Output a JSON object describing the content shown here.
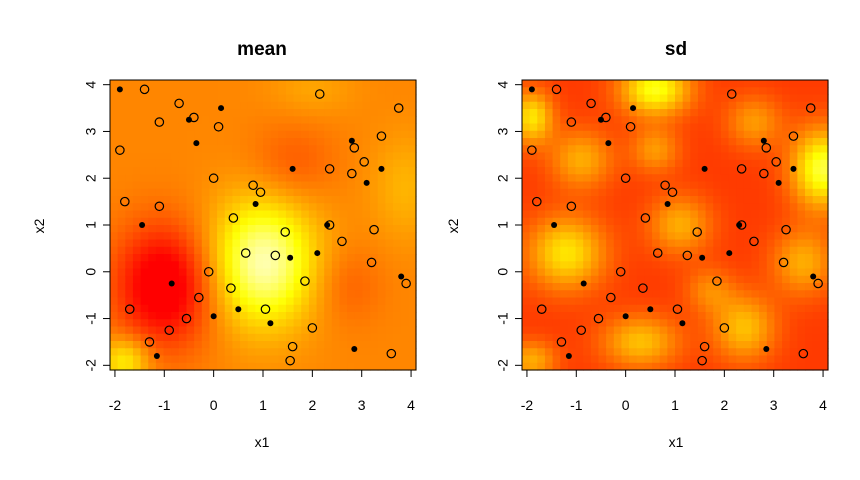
{
  "chart_data": [
    {
      "type": "heatmap",
      "title": "mean",
      "xlabel": "x1",
      "ylabel": "x2",
      "xlim": [
        -2.1,
        4.1
      ],
      "ylim": [
        -2.1,
        4.1
      ],
      "xticks": [
        "-2",
        "-1",
        "0",
        "1",
        "2",
        "3",
        "4"
      ],
      "yticks": [
        "-2",
        "-1",
        "0",
        "1",
        "2",
        "3",
        "4"
      ],
      "colormap": [
        "#ff0000",
        "#ff8000",
        "#ffff00",
        "#ffffff"
      ],
      "field_bumps": [
        {
          "x": 1.0,
          "y": 0.2,
          "sx": 0.75,
          "sy": 0.95,
          "a": 0.55
        },
        {
          "x": -1.0,
          "y": -0.3,
          "sx": 0.7,
          "sy": 0.9,
          "a": -0.45
        },
        {
          "x": -1.8,
          "y": -1.9,
          "sx": 0.35,
          "sy": 0.35,
          "a": 0.3
        },
        {
          "x": 1.6,
          "y": 2.3,
          "sx": 0.6,
          "sy": 0.6,
          "a": -0.12
        },
        {
          "x": 2.7,
          "y": -0.3,
          "sx": 0.5,
          "sy": 0.6,
          "a": -0.1
        },
        {
          "x": 3.9,
          "y": 1.8,
          "sx": 0.5,
          "sy": 0.8,
          "a": 0.12
        },
        {
          "x": 2.0,
          "y": 3.9,
          "sx": 0.6,
          "sy": 0.4,
          "a": 0.08
        }
      ],
      "field_base": 0.35,
      "design_points_open": [
        [
          -1.4,
          3.9
        ],
        [
          -1.9,
          2.6
        ],
        [
          -1.8,
          1.5
        ],
        [
          -1.1,
          1.4
        ],
        [
          -1.1,
          3.2
        ],
        [
          -0.7,
          3.6
        ],
        [
          -0.4,
          3.3
        ],
        [
          0.1,
          3.1
        ],
        [
          0.0,
          2.0
        ],
        [
          0.8,
          1.85
        ],
        [
          0.95,
          1.7
        ],
        [
          0.4,
          1.15
        ],
        [
          0.65,
          0.4
        ],
        [
          -0.1,
          0.0
        ],
        [
          0.35,
          -0.35
        ],
        [
          -0.3,
          -0.55
        ],
        [
          -0.55,
          -1.0
        ],
        [
          -0.9,
          -1.25
        ],
        [
          -1.7,
          -0.8
        ],
        [
          -1.3,
          -1.5
        ],
        [
          1.25,
          0.35
        ],
        [
          1.45,
          0.85
        ],
        [
          1.05,
          -0.8
        ],
        [
          1.85,
          -0.2
        ],
        [
          1.6,
          -1.6
        ],
        [
          1.55,
          -1.9
        ],
        [
          2.0,
          -1.2
        ],
        [
          2.35,
          1.0
        ],
        [
          2.6,
          0.65
        ],
        [
          2.35,
          2.2
        ],
        [
          2.15,
          3.8
        ],
        [
          2.8,
          2.1
        ],
        [
          2.85,
          2.65
        ],
        [
          3.05,
          2.35
        ],
        [
          3.4,
          2.9
        ],
        [
          3.25,
          0.9
        ],
        [
          3.2,
          0.2
        ],
        [
          3.75,
          3.5
        ],
        [
          3.9,
          -0.25
        ],
        [
          3.6,
          -1.75
        ]
      ],
      "design_points_filled": [
        [
          -1.9,
          3.9
        ],
        [
          -0.5,
          3.25
        ],
        [
          0.15,
          3.5
        ],
        [
          -0.35,
          2.75
        ],
        [
          1.6,
          2.2
        ],
        [
          2.8,
          2.8
        ],
        [
          3.4,
          2.2
        ],
        [
          3.1,
          1.9
        ],
        [
          0.85,
          1.45
        ],
        [
          -1.45,
          1.0
        ],
        [
          2.3,
          1.0
        ],
        [
          2.1,
          0.4
        ],
        [
          1.55,
          0.3
        ],
        [
          3.8,
          -0.1
        ],
        [
          -0.85,
          -0.25
        ],
        [
          0.0,
          -0.95
        ],
        [
          0.5,
          -0.8
        ],
        [
          1.15,
          -1.1
        ],
        [
          2.85,
          -1.65
        ],
        [
          -1.15,
          -1.8
        ]
      ]
    },
    {
      "type": "heatmap",
      "title": "sd",
      "xlabel": "x1",
      "ylabel": "x2",
      "xlim": [
        -2.1,
        4.1
      ],
      "ylim": [
        -2.1,
        4.1
      ],
      "xticks": [
        "-2",
        "-1",
        "0",
        "1",
        "2",
        "3",
        "4"
      ],
      "yticks": [
        "-2",
        "-1",
        "0",
        "1",
        "2",
        "3",
        "4"
      ],
      "colormap": [
        "#ff0000",
        "#ff8000",
        "#ffff00",
        "#ffffff"
      ],
      "field_bumps": [
        {
          "x": 0.6,
          "y": 3.9,
          "sx": 0.5,
          "sy": 0.4,
          "a": 0.55
        },
        {
          "x": 4.0,
          "y": 2.2,
          "sx": 0.45,
          "sy": 0.6,
          "a": 0.6
        },
        {
          "x": -1.2,
          "y": 0.4,
          "sx": 0.55,
          "sy": 0.55,
          "a": 0.45
        },
        {
          "x": -1.9,
          "y": 3.3,
          "sx": 0.3,
          "sy": 0.4,
          "a": 0.45
        },
        {
          "x": 0.3,
          "y": -1.5,
          "sx": 0.55,
          "sy": 0.4,
          "a": 0.35
        },
        {
          "x": 2.4,
          "y": -1.2,
          "sx": 0.45,
          "sy": 0.5,
          "a": 0.35
        },
        {
          "x": 1.1,
          "y": 1.0,
          "sx": 0.45,
          "sy": 0.45,
          "a": 0.3
        },
        {
          "x": -0.9,
          "y": 2.4,
          "sx": 0.45,
          "sy": 0.45,
          "a": 0.3
        },
        {
          "x": 2.6,
          "y": 3.2,
          "sx": 0.4,
          "sy": 0.4,
          "a": 0.25
        },
        {
          "x": 3.6,
          "y": 0.2,
          "sx": 0.45,
          "sy": 0.5,
          "a": 0.3
        },
        {
          "x": 0.6,
          "y": 2.6,
          "sx": 0.35,
          "sy": 0.35,
          "a": 0.25
        },
        {
          "x": 1.7,
          "y": -0.4,
          "sx": 0.35,
          "sy": 0.35,
          "a": 0.2
        },
        {
          "x": -1.9,
          "y": -1.9,
          "sx": 0.35,
          "sy": 0.3,
          "a": 0.3
        }
      ],
      "field_base": 0.15,
      "design_points_open": [
        [
          -1.4,
          3.9
        ],
        [
          -1.9,
          2.6
        ],
        [
          -1.8,
          1.5
        ],
        [
          -1.1,
          1.4
        ],
        [
          -1.1,
          3.2
        ],
        [
          -0.7,
          3.6
        ],
        [
          -0.4,
          3.3
        ],
        [
          0.1,
          3.1
        ],
        [
          0.0,
          2.0
        ],
        [
          0.8,
          1.85
        ],
        [
          0.95,
          1.7
        ],
        [
          0.4,
          1.15
        ],
        [
          0.65,
          0.4
        ],
        [
          -0.1,
          0.0
        ],
        [
          0.35,
          -0.35
        ],
        [
          -0.3,
          -0.55
        ],
        [
          -0.55,
          -1.0
        ],
        [
          -0.9,
          -1.25
        ],
        [
          -1.7,
          -0.8
        ],
        [
          -1.3,
          -1.5
        ],
        [
          1.25,
          0.35
        ],
        [
          1.45,
          0.85
        ],
        [
          1.05,
          -0.8
        ],
        [
          1.85,
          -0.2
        ],
        [
          1.6,
          -1.6
        ],
        [
          1.55,
          -1.9
        ],
        [
          2.0,
          -1.2
        ],
        [
          2.35,
          1.0
        ],
        [
          2.6,
          0.65
        ],
        [
          2.35,
          2.2
        ],
        [
          2.15,
          3.8
        ],
        [
          2.8,
          2.1
        ],
        [
          2.85,
          2.65
        ],
        [
          3.05,
          2.35
        ],
        [
          3.4,
          2.9
        ],
        [
          3.25,
          0.9
        ],
        [
          3.2,
          0.2
        ],
        [
          3.75,
          3.5
        ],
        [
          3.9,
          -0.25
        ],
        [
          3.6,
          -1.75
        ]
      ],
      "design_points_filled": [
        [
          -1.9,
          3.9
        ],
        [
          -0.5,
          3.25
        ],
        [
          0.15,
          3.5
        ],
        [
          -0.35,
          2.75
        ],
        [
          1.6,
          2.2
        ],
        [
          2.8,
          2.8
        ],
        [
          3.4,
          2.2
        ],
        [
          3.1,
          1.9
        ],
        [
          0.85,
          1.45
        ],
        [
          -1.45,
          1.0
        ],
        [
          2.3,
          1.0
        ],
        [
          2.1,
          0.4
        ],
        [
          1.55,
          0.3
        ],
        [
          3.8,
          -0.1
        ],
        [
          -0.85,
          -0.25
        ],
        [
          0.0,
          -0.95
        ],
        [
          0.5,
          -0.8
        ],
        [
          1.15,
          -1.1
        ],
        [
          2.85,
          -1.65
        ],
        [
          -1.15,
          -1.8
        ]
      ]
    }
  ]
}
